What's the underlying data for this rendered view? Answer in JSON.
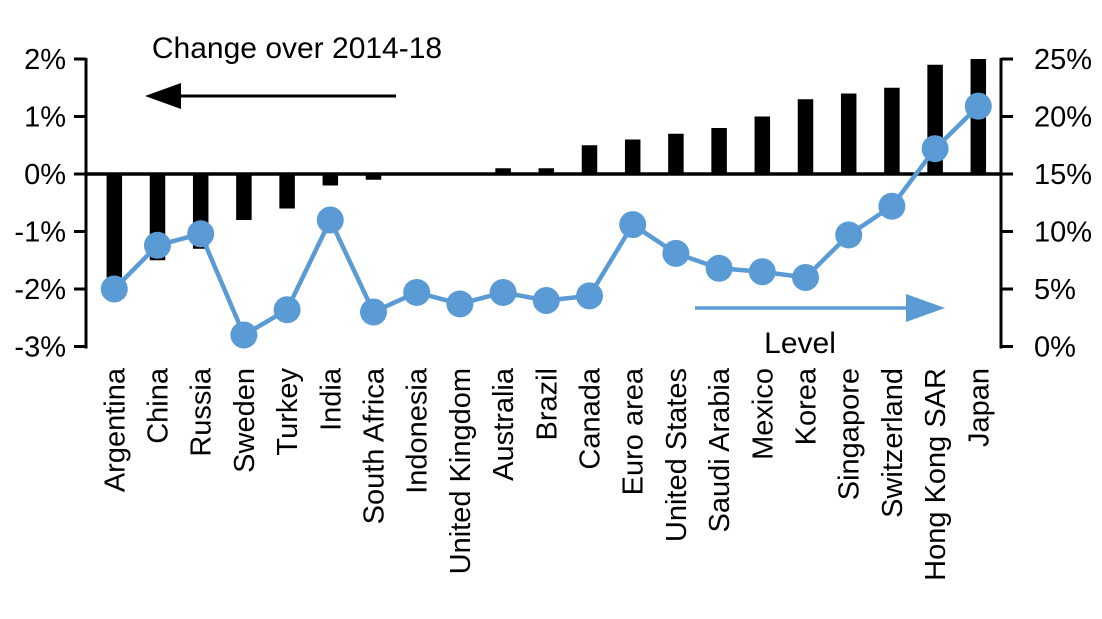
{
  "chart_data": {
    "type": "combo",
    "title": "",
    "categories": [
      "Argentina",
      "China",
      "Russia",
      "Sweden",
      "Turkey",
      "India",
      "South Africa",
      "Indonesia",
      "United Kingdom",
      "Australia",
      "Brazil",
      "Canada",
      "Euro area",
      "United States",
      "Saudi Arabia",
      "Mexico",
      "Korea",
      "Singapore",
      "Switzerland",
      "Hong Kong SAR",
      "Japan"
    ],
    "series": [
      {
        "name": "Change over 2014-18",
        "type": "bar",
        "axis": "left",
        "color": "#000000",
        "values": [
          -1.8,
          -1.5,
          -1.3,
          -0.8,
          -0.6,
          -0.2,
          -0.1,
          0.0,
          0.0,
          0.1,
          0.1,
          0.5,
          0.6,
          0.7,
          0.8,
          1.0,
          1.3,
          1.4,
          1.5,
          1.9,
          2.0
        ]
      },
      {
        "name": "Level",
        "type": "line",
        "axis": "right",
        "color": "#5B9BD5",
        "values": [
          5.0,
          8.8,
          9.8,
          1.0,
          3.2,
          11.0,
          3.0,
          4.7,
          3.7,
          4.7,
          4.0,
          4.4,
          10.6,
          8.1,
          6.8,
          6.5,
          6.0,
          9.7,
          12.2,
          17.2,
          20.9
        ]
      }
    ],
    "left_axis": {
      "min": -3,
      "max": 2,
      "tick_step": 1,
      "tick_labels": [
        "2%",
        "1%",
        "0%",
        "-1%",
        "-2%",
        "-3%"
      ],
      "tick_values": [
        2,
        1,
        0,
        -1,
        -2,
        -3
      ]
    },
    "right_axis": {
      "min": 0,
      "max": 25,
      "tick_step": 5,
      "tick_labels": [
        "25%",
        "20%",
        "15%",
        "10%",
        "5%",
        "0%"
      ],
      "tick_values": [
        25,
        20,
        15,
        10,
        5,
        0
      ]
    },
    "annotations": {
      "bar_series_label": "Change over 2014-18",
      "bar_arrow_direction": "left",
      "line_series_label": "Level",
      "line_arrow_direction": "right"
    },
    "grid": "off",
    "legend_position": "in-plot-arrow-annotations",
    "colors": {
      "bars": "#000000",
      "line": "#5B9BD5",
      "axis": "#000000",
      "background": "#ffffff"
    }
  }
}
